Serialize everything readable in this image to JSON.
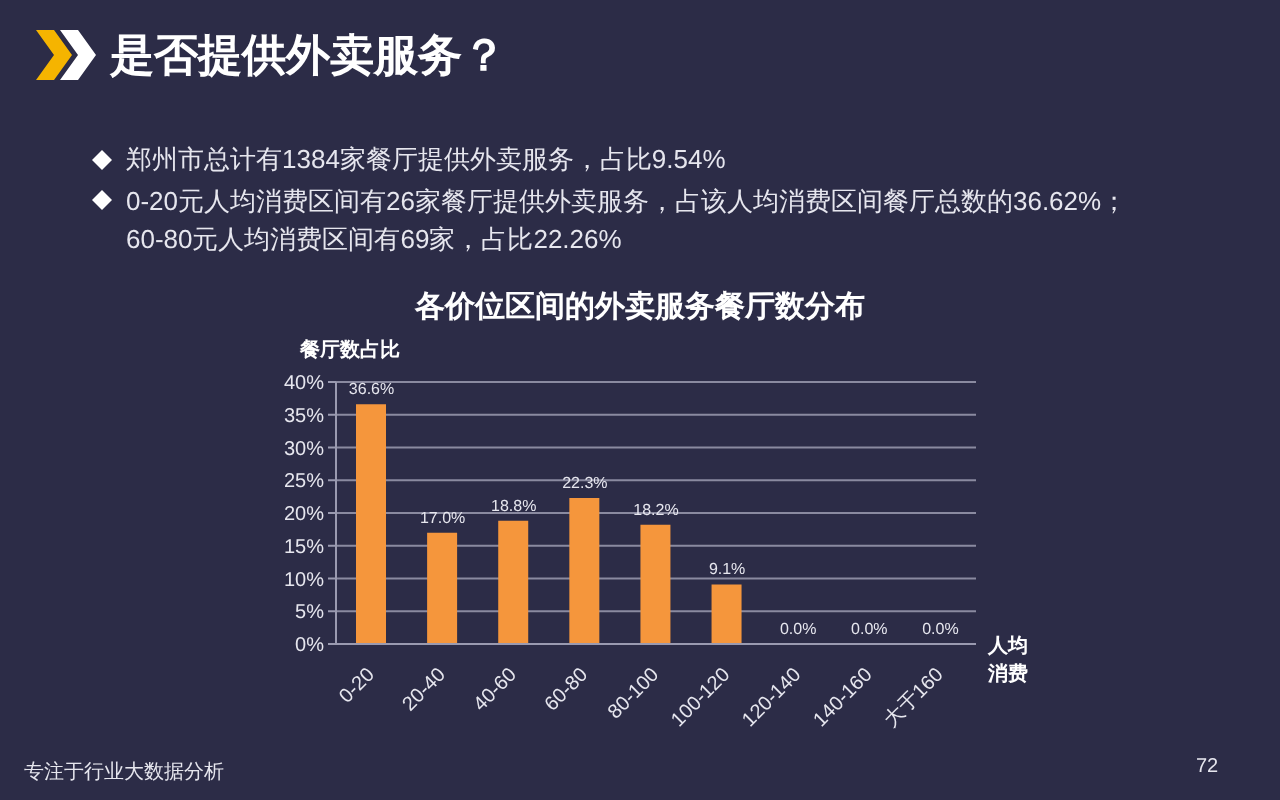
{
  "chart_data": {
    "type": "bar",
    "title": "是否提供外卖服务？",
    "subtitle": "各价位区间的外卖服务餐厅数分布",
    "xlabel": "人均消费",
    "ylabel": "餐厅数占比",
    "annotations": [
      "郑州市总计有1384家餐厅提供外卖服务，占比9.54%",
      "0-20元人均消费区间有26家餐厅提供外卖服务，占该人均消费区间餐厅总数的36.62%；60-80元人均消费区间有69家，占比22.26%",
      "专注于行业大数据分析",
      "72"
    ],
    "categories": [
      "0-20",
      "20-40",
      "40-60",
      "60-80",
      "80-100",
      "100-120",
      "120-140",
      "140-160",
      "大于160"
    ],
    "values": [
      36.6,
      17.0,
      18.8,
      22.3,
      18.2,
      9.1,
      0,
      0,
      0
    ],
    "value_labels": [
      "36.6%",
      "17.0%",
      "18.8%",
      "22.3%",
      "18.2%",
      "9.1%",
      "0.0%",
      "0.0%",
      "0.0%"
    ],
    "color": "#f5963c",
    "ylim": [
      0,
      40
    ],
    "yticks": [
      {
        "value": 0,
        "label": "0%"
      },
      {
        "value": 5,
        "label": "5%"
      },
      {
        "value": 10,
        "label": "10%"
      },
      {
        "value": 15,
        "label": "15%"
      },
      {
        "value": 20,
        "label": "20%"
      },
      {
        "value": 25,
        "label": "25%"
      },
      {
        "value": 30,
        "label": "30%"
      },
      {
        "value": 35,
        "label": "35%"
      },
      {
        "value": 40,
        "label": "40%"
      }
    ],
    "grid": "y"
  }
}
